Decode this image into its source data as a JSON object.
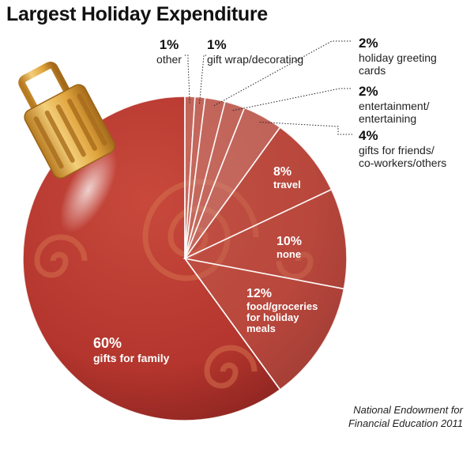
{
  "chart_data": {
    "type": "pie",
    "title": "Largest Holiday Expenditure",
    "slices": [
      {
        "value": 1,
        "pct_label": "1%",
        "lines": [
          "other"
        ]
      },
      {
        "value": 1,
        "pct_label": "1%",
        "lines": [
          "gift wrap/decorating"
        ]
      },
      {
        "value": 2,
        "pct_label": "2%",
        "lines": [
          "holiday greeting",
          "cards"
        ]
      },
      {
        "value": 2,
        "pct_label": "2%",
        "lines": [
          "entertainment/",
          "entertaining"
        ]
      },
      {
        "value": 4,
        "pct_label": "4%",
        "lines": [
          "gifts for friends/",
          "co-workers/others"
        ]
      },
      {
        "value": 8,
        "pct_label": "8%",
        "lines": [
          "travel"
        ]
      },
      {
        "value": 10,
        "pct_label": "10%",
        "lines": [
          "none"
        ]
      },
      {
        "value": 12,
        "pct_label": "12%",
        "lines": [
          "food/groceries",
          "for holiday",
          "meals"
        ]
      },
      {
        "value": 60,
        "pct_label": "60%",
        "lines": [
          "gifts for family"
        ]
      }
    ],
    "source": [
      "National Endowment for",
      "Financial Education 2011"
    ]
  },
  "colors": {
    "ornament_base": "#b7382f",
    "ornament_dark": "#8e2420",
    "small_slices": "#c9867c",
    "mid_slices": "#bf5d50",
    "swirl": "#d4704c",
    "cap_gold": "#e2a93f",
    "cap_dark": "#9a6418"
  }
}
